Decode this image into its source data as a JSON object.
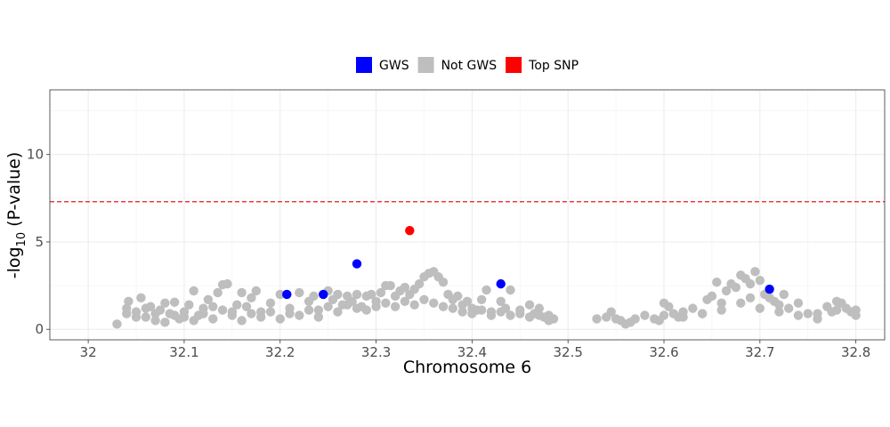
{
  "chart_data": {
    "type": "scatter",
    "title": "",
    "xlabel": "Chromosome 6",
    "ylabel_main": "-log",
    "ylabel_sub": "10",
    "ylabel_tail": " (P-value)",
    "xlim": [
      31.96,
      32.83
    ],
    "ylim": [
      -0.6,
      13.7
    ],
    "x_ticks": [
      32,
      32.1,
      32.2,
      32.3,
      32.4,
      32.5,
      32.6,
      32.7,
      32.8
    ],
    "x_tick_labels": [
      "32",
      "32.1",
      "32.2",
      "32.3",
      "32.4",
      "32.5",
      "32.6",
      "32.7",
      "32.8"
    ],
    "y_ticks": [
      0,
      5,
      10
    ],
    "y_tick_labels": [
      "0",
      "5",
      "10"
    ],
    "threshold": 7.3,
    "threshold_color": "#e41a1c",
    "grid": true,
    "legend_placement": "top",
    "legend": [
      {
        "label": "GWS",
        "color": "#0000ff"
      },
      {
        "label": "Not GWS",
        "color": "#bebebe"
      },
      {
        "label": "Top SNP",
        "color": "#ff0000"
      }
    ],
    "series": [
      {
        "name": "Not GWS",
        "color": "#bebebe",
        "points": [
          [
            32.03,
            0.3
          ],
          [
            32.04,
            1.2
          ],
          [
            32.042,
            1.6
          ],
          [
            32.05,
            1.0
          ],
          [
            32.055,
            1.8
          ],
          [
            32.06,
            0.7
          ],
          [
            32.065,
            1.3
          ],
          [
            32.07,
            0.5
          ],
          [
            32.075,
            1.1
          ],
          [
            32.08,
            1.5
          ],
          [
            32.085,
            0.9
          ],
          [
            32.09,
            1.55
          ],
          [
            32.095,
            0.6
          ],
          [
            32.1,
            1.0
          ],
          [
            32.105,
            1.4
          ],
          [
            32.11,
            2.2
          ],
          [
            32.115,
            0.8
          ],
          [
            32.12,
            1.2
          ],
          [
            32.125,
            1.7
          ],
          [
            32.13,
            1.3
          ],
          [
            32.135,
            2.1
          ],
          [
            32.14,
            2.55
          ],
          [
            32.145,
            2.6
          ],
          [
            32.15,
            1.0
          ],
          [
            32.155,
            1.4
          ],
          [
            32.16,
            2.1
          ],
          [
            32.165,
            1.3
          ],
          [
            32.17,
            1.8
          ],
          [
            32.175,
            2.2
          ],
          [
            32.18,
            1.0
          ],
          [
            32.19,
            1.5
          ],
          [
            32.2,
            2.0
          ],
          [
            32.21,
            1.2
          ],
          [
            32.22,
            2.1
          ],
          [
            32.23,
            1.6
          ],
          [
            32.235,
            1.9
          ],
          [
            32.24,
            1.1
          ],
          [
            32.25,
            2.2
          ],
          [
            32.255,
            1.7
          ],
          [
            32.26,
            2.0
          ],
          [
            32.265,
            1.4
          ],
          [
            32.27,
            1.9
          ],
          [
            32.275,
            1.6
          ],
          [
            32.28,
            2.0
          ],
          [
            32.285,
            1.3
          ],
          [
            32.29,
            1.9
          ],
          [
            32.295,
            2.0
          ],
          [
            32.3,
            1.6
          ],
          [
            32.305,
            2.1
          ],
          [
            32.31,
            2.5
          ],
          [
            32.315,
            2.5
          ],
          [
            32.32,
            1.9
          ],
          [
            32.325,
            2.2
          ],
          [
            32.33,
            2.4
          ],
          [
            32.335,
            2.0
          ],
          [
            32.34,
            2.3
          ],
          [
            32.345,
            2.6
          ],
          [
            32.35,
            3.0
          ],
          [
            32.355,
            3.2
          ],
          [
            32.36,
            3.3
          ],
          [
            32.365,
            3.0
          ],
          [
            32.37,
            2.7
          ],
          [
            32.375,
            2.0
          ],
          [
            32.38,
            1.7
          ],
          [
            32.385,
            1.9
          ],
          [
            32.39,
            1.4
          ],
          [
            32.395,
            1.6
          ],
          [
            32.4,
            1.2
          ],
          [
            32.405,
            1.1
          ],
          [
            32.41,
            1.7
          ],
          [
            32.415,
            2.25
          ],
          [
            32.42,
            1.0
          ],
          [
            32.43,
            1.6
          ],
          [
            32.435,
            1.2
          ],
          [
            32.44,
            2.25
          ],
          [
            32.45,
            1.1
          ],
          [
            32.46,
            1.4
          ],
          [
            32.465,
            0.9
          ],
          [
            32.47,
            1.2
          ],
          [
            32.475,
            0.7
          ],
          [
            32.48,
            0.8
          ],
          [
            32.485,
            0.6
          ],
          [
            32.53,
            0.6
          ],
          [
            32.54,
            0.7
          ],
          [
            32.545,
            1.0
          ],
          [
            32.55,
            0.6
          ],
          [
            32.555,
            0.5
          ],
          [
            32.56,
            0.3
          ],
          [
            32.565,
            0.4
          ],
          [
            32.57,
            0.6
          ],
          [
            32.58,
            0.8
          ],
          [
            32.59,
            0.6
          ],
          [
            32.595,
            0.5
          ],
          [
            32.6,
            1.5
          ],
          [
            32.605,
            1.3
          ],
          [
            32.61,
            0.9
          ],
          [
            32.615,
            0.7
          ],
          [
            32.62,
            1.0
          ],
          [
            32.63,
            1.2
          ],
          [
            32.64,
            0.9
          ],
          [
            32.645,
            1.7
          ],
          [
            32.65,
            1.9
          ],
          [
            32.655,
            2.7
          ],
          [
            32.66,
            1.5
          ],
          [
            32.665,
            2.2
          ],
          [
            32.67,
            2.6
          ],
          [
            32.675,
            2.4
          ],
          [
            32.68,
            3.1
          ],
          [
            32.685,
            2.9
          ],
          [
            32.69,
            2.6
          ],
          [
            32.695,
            3.3
          ],
          [
            32.7,
            2.8
          ],
          [
            32.705,
            2.0
          ],
          [
            32.71,
            1.8
          ],
          [
            32.715,
            1.6
          ],
          [
            32.72,
            1.4
          ],
          [
            32.725,
            2.0
          ],
          [
            32.73,
            1.2
          ],
          [
            32.74,
            1.5
          ],
          [
            32.75,
            0.9
          ],
          [
            32.76,
            0.6
          ],
          [
            32.77,
            1.3
          ],
          [
            32.775,
            1.0
          ],
          [
            32.78,
            1.6
          ],
          [
            32.785,
            1.5
          ],
          [
            32.79,
            1.2
          ],
          [
            32.795,
            1.0
          ],
          [
            32.8,
            1.1
          ],
          [
            32.04,
            0.9
          ],
          [
            32.05,
            0.7
          ],
          [
            32.06,
            1.2
          ],
          [
            32.07,
            0.9
          ],
          [
            32.08,
            0.4
          ],
          [
            32.09,
            0.8
          ],
          [
            32.1,
            0.7
          ],
          [
            32.11,
            0.5
          ],
          [
            32.12,
            0.9
          ],
          [
            32.13,
            0.6
          ],
          [
            32.14,
            1.1
          ],
          [
            32.15,
            0.8
          ],
          [
            32.16,
            0.5
          ],
          [
            32.17,
            0.9
          ],
          [
            32.18,
            0.7
          ],
          [
            32.19,
            1.0
          ],
          [
            32.2,
            0.6
          ],
          [
            32.21,
            0.9
          ],
          [
            32.22,
            0.8
          ],
          [
            32.23,
            1.1
          ],
          [
            32.24,
            0.7
          ],
          [
            32.25,
            1.3
          ],
          [
            32.26,
            1.0
          ],
          [
            32.27,
            1.4
          ],
          [
            32.28,
            1.2
          ],
          [
            32.29,
            1.1
          ],
          [
            32.3,
            1.3
          ],
          [
            32.31,
            1.5
          ],
          [
            32.32,
            1.3
          ],
          [
            32.33,
            1.6
          ],
          [
            32.34,
            1.4
          ],
          [
            32.35,
            1.7
          ],
          [
            32.36,
            1.5
          ],
          [
            32.37,
            1.3
          ],
          [
            32.38,
            1.2
          ],
          [
            32.39,
            1.0
          ],
          [
            32.4,
            0.9
          ],
          [
            32.41,
            1.1
          ],
          [
            32.42,
            0.8
          ],
          [
            32.43,
            1.0
          ],
          [
            32.44,
            0.8
          ],
          [
            32.45,
            0.9
          ],
          [
            32.46,
            0.7
          ],
          [
            32.47,
            0.8
          ],
          [
            32.48,
            0.5
          ],
          [
            32.6,
            0.8
          ],
          [
            32.62,
            0.7
          ],
          [
            32.64,
            0.9
          ],
          [
            32.66,
            1.1
          ],
          [
            32.68,
            1.5
          ],
          [
            32.69,
            1.8
          ],
          [
            32.7,
            1.2
          ],
          [
            32.72,
            1.0
          ],
          [
            32.74,
            0.8
          ],
          [
            32.76,
            0.9
          ],
          [
            32.78,
            1.1
          ],
          [
            32.8,
            0.8
          ]
        ]
      },
      {
        "name": "GWS",
        "color": "#0000ff",
        "points": [
          [
            32.207,
            2.0
          ],
          [
            32.245,
            2.0
          ],
          [
            32.28,
            3.75
          ],
          [
            32.43,
            2.6
          ],
          [
            32.71,
            2.3
          ]
        ]
      },
      {
        "name": "Top SNP",
        "color": "#ff0000",
        "points": [
          [
            32.335,
            5.65
          ]
        ]
      }
    ]
  }
}
